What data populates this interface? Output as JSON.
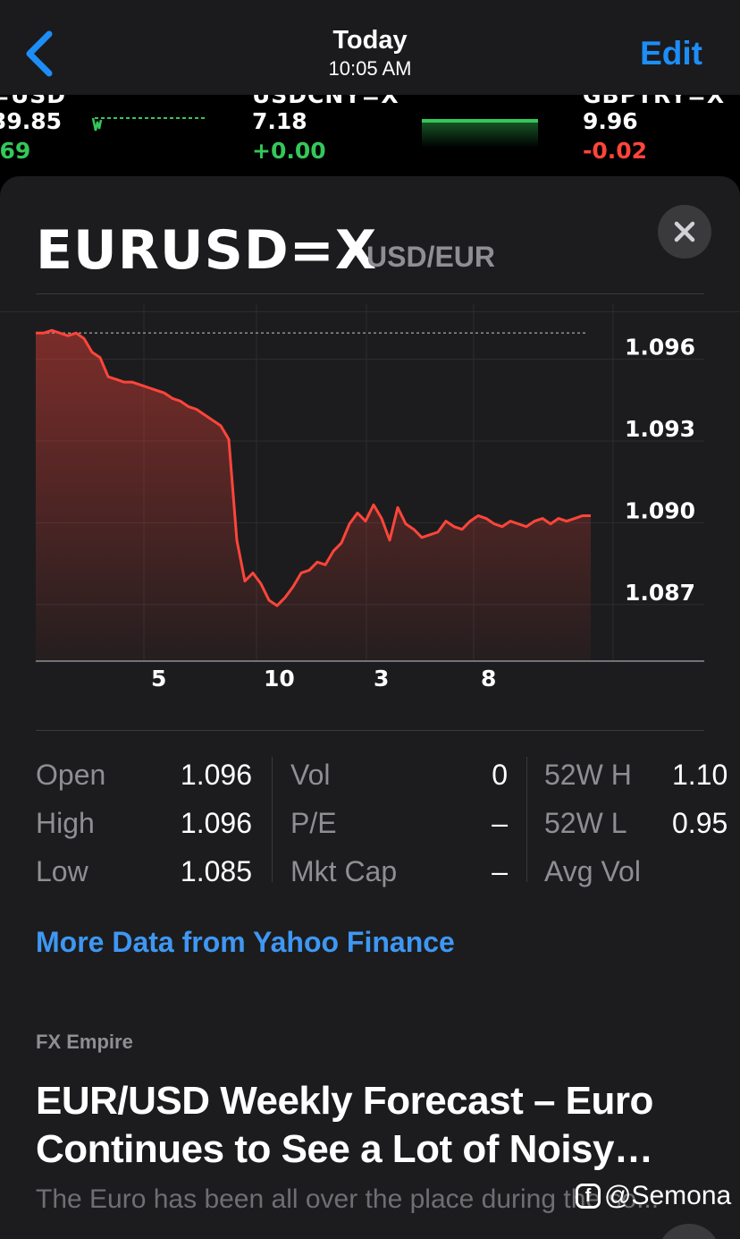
{
  "nav": {
    "title": "Today",
    "time": "10:05 AM",
    "edit_label": "Edit",
    "back_icon": "chevron-left-icon"
  },
  "ticker": [
    {
      "symbol": "=USD",
      "price": "39.85",
      "change": ".69",
      "change_color": "#34c759"
    },
    {
      "symbol": "USDCNY=X",
      "price": "7.18",
      "change": "+0.00",
      "change_color": "#34c759"
    },
    {
      "symbol": "GBPTRY=X",
      "price": "9.96",
      "change": "-0.02",
      "change_color": "#ff453a"
    }
  ],
  "header": {
    "symbol": "EURUSD=X",
    "subtitle": "USD/EUR",
    "close_icon": "close-icon"
  },
  "chart_data": {
    "type": "line",
    "x": [
      0,
      0.3,
      0.6,
      0.9,
      1.2,
      1.5,
      1.8,
      2.1,
      2.4,
      2.7,
      3.0,
      3.3,
      3.6,
      3.9,
      4.2,
      4.5,
      4.8,
      5.1,
      5.4,
      5.7,
      6.0,
      6.3,
      6.6,
      6.9,
      7.2,
      7.5,
      7.8,
      8.1,
      8.4,
      8.7,
      9.0,
      9.3,
      9.6,
      9.9,
      10.2,
      10.5,
      10.8,
      11.1,
      11.4,
      11.7,
      12.0,
      12.3,
      12.6,
      12.9,
      13.2,
      13.5,
      13.8,
      14.1,
      14.4,
      14.7,
      15.0,
      15.3,
      15.6,
      15.9,
      16.2,
      16.5,
      16.8,
      17.1,
      17.4,
      17.7,
      18.0,
      18.3,
      18.6,
      18.9,
      19.2,
      19.5,
      19.8,
      20.1,
      20.4,
      20.7
    ],
    "values": [
      1.0965,
      1.0965,
      1.0966,
      1.0965,
      1.0964,
      1.0965,
      1.0963,
      1.0958,
      1.0956,
      1.0949,
      1.0948,
      1.0947,
      1.0947,
      1.0946,
      1.0945,
      1.0944,
      1.0943,
      1.0941,
      1.094,
      1.0938,
      1.0937,
      1.0935,
      1.0933,
      1.0931,
      1.0926,
      1.0889,
      1.0874,
      1.0877,
      1.0873,
      1.0867,
      1.0865,
      1.0868,
      1.0872,
      1.0877,
      1.0878,
      1.0881,
      1.088,
      1.0885,
      1.0888,
      1.0895,
      1.0899,
      1.0896,
      1.0902,
      1.0897,
      1.0889,
      1.0901,
      1.0895,
      1.0893,
      1.089,
      1.0891,
      1.0892,
      1.0896,
      1.0894,
      1.0893,
      1.0896,
      1.0898,
      1.0897,
      1.0895,
      1.0894,
      1.0896,
      1.0895,
      1.0894,
      1.0896,
      1.0897,
      1.0895,
      1.0897,
      1.0896,
      1.0897,
      1.0898,
      1.0898
    ],
    "y_ticks": [
      "1.096",
      "1.093",
      "1.090",
      "1.087"
    ],
    "y_tick_values": [
      1.096,
      1.093,
      1.09,
      1.087
    ],
    "x_ticks": [
      "5",
      "10",
      "3",
      "8"
    ],
    "x_tick_positions": [
      4.5,
      8.7,
      12.8,
      16.8
    ],
    "ylim": [
      1.0845,
      1.0971
    ],
    "xlim": [
      0,
      21
    ],
    "reference_line": 1.0965,
    "line_color": "#ff453a",
    "grid": true
  },
  "stats": {
    "col1": [
      {
        "label": "Open",
        "value": "1.096"
      },
      {
        "label": "High",
        "value": "1.096"
      },
      {
        "label": "Low",
        "value": "1.085"
      }
    ],
    "col2": [
      {
        "label": "Vol",
        "value": "0"
      },
      {
        "label": "P/E",
        "value": "–"
      },
      {
        "label": "Mkt Cap",
        "value": "–"
      }
    ],
    "col3": [
      {
        "label": "52W H",
        "value": "1.10"
      },
      {
        "label": "52W L",
        "value": "0.95"
      },
      {
        "label": "Avg Vol",
        "value": ""
      }
    ]
  },
  "more_data_link": "More Data from Yahoo Finance",
  "news": {
    "source": "FX Empire",
    "headline": "EUR/USD Weekly Forecast – Euro Continues to See a Lot of Noisy…",
    "snippet": "The Euro has been all over the place during the so..."
  },
  "watermark": {
    "icon": "facebook-icon",
    "text": "@Semona"
  }
}
